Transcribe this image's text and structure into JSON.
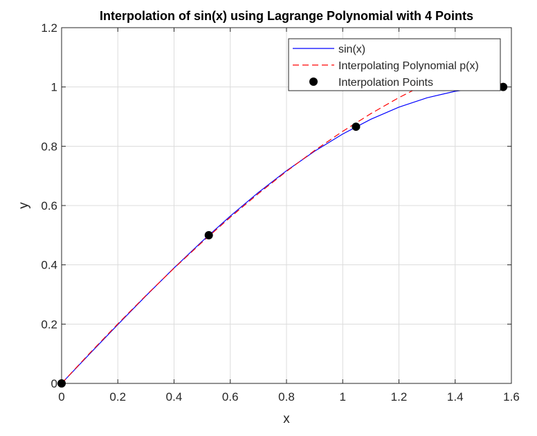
{
  "chart_data": {
    "type": "line",
    "title": "Interpolation of sin(x) using Lagrange Polynomial with 4 Points",
    "xlabel": "x",
    "ylabel": "y",
    "xlim": [
      0,
      1.6
    ],
    "ylim": [
      0,
      1.2
    ],
    "x_ticks": [
      0,
      0.2,
      0.4,
      0.6,
      0.8,
      1,
      1.2,
      1.4,
      1.6
    ],
    "x_tick_labels": [
      "0",
      "0.2",
      "0.4",
      "0.6",
      "0.8",
      "1",
      "1.2",
      "1.4",
      "1.6"
    ],
    "y_ticks": [
      0,
      0.2,
      0.4,
      0.6,
      0.8,
      1,
      1.2
    ],
    "y_tick_labels": [
      "0",
      "0.2",
      "0.4",
      "0.6",
      "0.8",
      "1",
      "1.2"
    ],
    "grid": true,
    "legend_position": "top-right",
    "series": [
      {
        "name": "sin(x)",
        "style": "solid",
        "color": "#0000ff",
        "x": [
          0,
          0.1,
          0.2,
          0.3,
          0.4,
          0.5,
          0.6,
          0.7,
          0.8,
          0.9,
          1.0,
          1.1,
          1.2,
          1.3,
          1.4,
          1.5,
          1.5708
        ],
        "y": [
          0,
          0.0998,
          0.1987,
          0.2955,
          0.3894,
          0.4794,
          0.5646,
          0.6442,
          0.7174,
          0.7833,
          0.8415,
          0.8912,
          0.932,
          0.9636,
          0.9854,
          0.9975,
          1.0
        ]
      },
      {
        "name": "Interpolating Polynomial p(x)",
        "style": "dashed",
        "color": "#ff0000",
        "x": [
          0,
          0.1,
          0.2,
          0.3,
          0.4,
          0.5,
          0.6,
          0.7,
          0.8,
          0.9,
          1.0,
          1.1,
          1.2,
          1.3,
          1.4,
          1.5,
          1.5708
        ],
        "y": [
          0,
          0.1019,
          0.2009,
          0.2965,
          0.3885,
          0.4766,
          0.5606,
          0.6403,
          0.7153,
          0.7855,
          0.8505,
          0.9101,
          0.9641,
          1.0123,
          1.0543,
          1.0899,
          1.0
        ]
      },
      {
        "name": "Interpolation Points",
        "style": "markers",
        "color": "#000000",
        "x": [
          0,
          0.5236,
          1.0472,
          1.5708
        ],
        "y": [
          0,
          0.5,
          0.866,
          1.0
        ]
      }
    ]
  }
}
